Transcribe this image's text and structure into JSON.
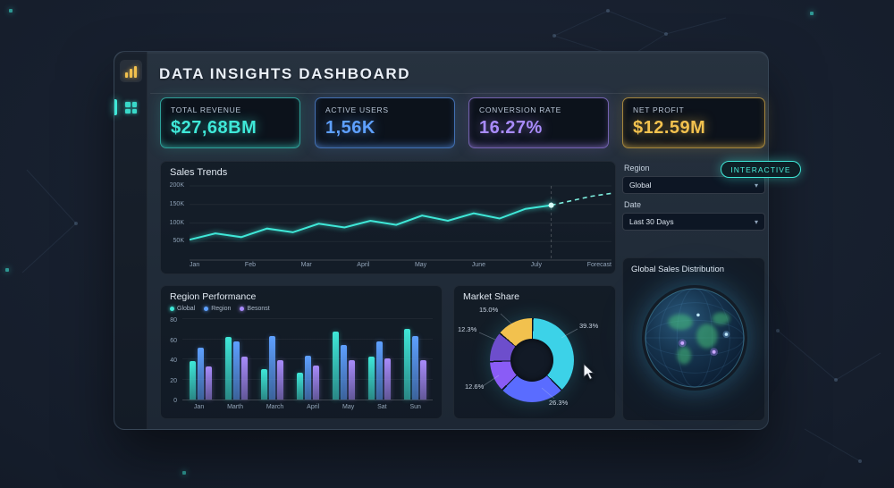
{
  "app": {
    "title": "DATA INSIGHTS DASHBOARD",
    "interactive_badge": "INTERACTIVE"
  },
  "kpis": [
    {
      "label": "TOTAL REVENUE",
      "value": "$27,68BM",
      "color": "#3fe8d8"
    },
    {
      "label": "ACTIVE USERS",
      "value": "1,56K",
      "color": "#5ea0ff"
    },
    {
      "label": "CONVERSION RATE",
      "value": "16.27%",
      "color": "#a88bfa"
    },
    {
      "label": "NET PROFIT",
      "value": "$12.59M",
      "color": "#f2c14e"
    }
  ],
  "filters": {
    "region_label": "Region",
    "region_value": "Global",
    "date_label": "Date",
    "date_value": "Last 30 Days"
  },
  "panels": {
    "sales_trends_title": "Sales Trends",
    "region_performance_title": "Region Performance",
    "market_share_title": "Market Share",
    "global_distribution_title": "Global Sales Distribution"
  },
  "chart_data": [
    {
      "id": "sales_trends",
      "type": "line",
      "title": "Sales Trends",
      "x_labels": [
        "Jan",
        "Feb",
        "Mar",
        "April",
        "May",
        "June",
        "July",
        "Forecast"
      ],
      "y_ticks": [
        {
          "label": "200K",
          "value": 200
        },
        {
          "label": "150K",
          "value": 150
        },
        {
          "label": "100K",
          "value": 100
        },
        {
          "label": "50K",
          "value": 50
        }
      ],
      "ylim": [
        0,
        200
      ],
      "series": [
        {
          "name": "Sales",
          "color": "#3fe8d8",
          "values": [
            55,
            72,
            62,
            85,
            75,
            98,
            88,
            106,
            95,
            120,
            106,
            126,
            112,
            138,
            148
          ]
        },
        {
          "name": "Forecast",
          "color": "#7deede",
          "style": "dashed",
          "values": [
            148,
            160,
            172,
            180
          ]
        }
      ]
    },
    {
      "id": "region_performance",
      "type": "bar",
      "title": "Region Performance",
      "categories": [
        "Jan",
        "Marth",
        "March",
        "April",
        "May",
        "Sat",
        "Sun"
      ],
      "ylim": [
        0,
        80
      ],
      "y_ticks": [
        0,
        20,
        40,
        60,
        80
      ],
      "series": [
        {
          "name": "Global",
          "color": "#3fe8d8",
          "values": [
            38,
            62,
            30,
            27,
            68,
            43,
            70
          ]
        },
        {
          "name": "Region",
          "color": "#5ea0ff",
          "values": [
            52,
            58,
            63,
            44,
            54,
            58,
            63
          ]
        },
        {
          "name": "Besonst",
          "color": "#a88bfa",
          "values": [
            33,
            43,
            39,
            34,
            39,
            41,
            39
          ]
        }
      ]
    },
    {
      "id": "market_share",
      "type": "pie",
      "title": "Market Share",
      "slices": [
        {
          "label": "15.0%",
          "value": 15.0,
          "color": "#f2c14e"
        },
        {
          "label": "39.3%",
          "value": 39.3,
          "color": "#3cd2e8"
        },
        {
          "label": "26.3%",
          "value": 26.3,
          "color": "#5a6cff"
        },
        {
          "label": "12.6%",
          "value": 12.6,
          "color": "#8a5cf6"
        },
        {
          "label": "12.3%",
          "value": 12.3,
          "color": "#6d4ecc"
        }
      ]
    }
  ]
}
